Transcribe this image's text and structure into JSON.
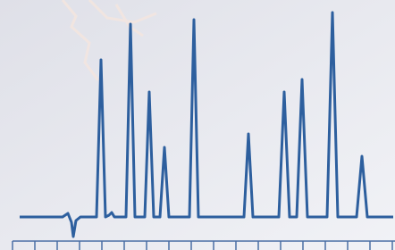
{
  "chart_data": {
    "type": "line",
    "x": [
      22,
      70,
      76,
      80,
      82,
      85,
      90,
      108,
      113,
      118,
      122,
      125,
      128,
      141,
      146,
      151,
      162,
      167,
      172,
      179,
      184,
      189,
      212,
      217,
      222,
      273,
      278,
      283,
      312,
      318,
      324,
      332,
      338,
      344,
      366,
      372,
      378,
      399,
      405,
      411,
      440
    ],
    "series": [
      {
        "color": "#2d5f9e",
        "values": [
          0,
          0,
          4,
          -6,
          -22,
          -4,
          0,
          0,
          176,
          0,
          2,
          5,
          0,
          0,
          216,
          0,
          0,
          140,
          0,
          0,
          78,
          0,
          0,
          221,
          0,
          0,
          93,
          0,
          0,
          140,
          0,
          0,
          154,
          0,
          0,
          229,
          0,
          0,
          68,
          0,
          0
        ]
      }
    ],
    "xlim": [
      0,
      442
    ],
    "ylim": [
      -37,
      243
    ]
  }
}
